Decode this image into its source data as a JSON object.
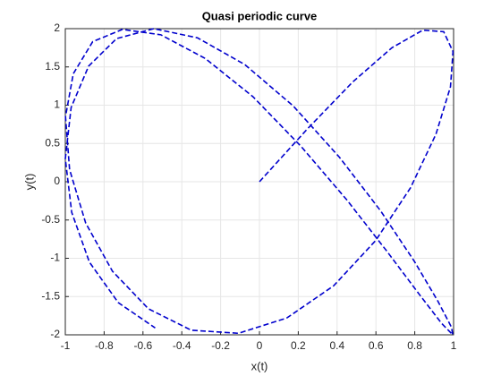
{
  "chart_data": {
    "type": "line",
    "title": "Quasi periodic curve",
    "x_label": "x(t)",
    "y_label": "y(t)",
    "x": [
      0,
      0.247,
      0.479,
      0.682,
      0.841,
      0.949,
      0.997,
      0.984,
      0.909,
      0.778,
      0.598,
      0.382,
      0.141,
      -0.108,
      -0.351,
      -0.572,
      -0.757,
      -0.895,
      -0.978,
      -0.999,
      -0.959,
      -0.859,
      -0.706,
      -0.508,
      -0.279,
      -0.033,
      0.215,
      0.451,
      0.657,
      0.823,
      0.938,
      0.996,
      0.989,
      0.919,
      0.798,
      0.624,
      0.412,
      0.174,
      -0.075,
      -0.319,
      -0.544,
      -0.736,
      -0.88,
      -0.97,
      -1.0,
      -0.967,
      -0.876,
      -0.727,
      -0.537
    ],
    "series": [
      {
        "color": "#0000cd",
        "line_style": "dashed",
        "values": [
          0,
          0.69,
          1.3,
          1.75,
          1.98,
          1.96,
          1.7,
          1.24,
          0.62,
          -0.08,
          -0.77,
          -1.36,
          -1.78,
          -1.98,
          -1.94,
          -1.66,
          -1.17,
          -0.54,
          0.16,
          0.85,
          1.41,
          1.83,
          1.99,
          1.92,
          1.61,
          1.11,
          0.46,
          -0.24,
          -0.91,
          -1.47,
          -1.85,
          -2.0,
          -1.9,
          -1.56,
          -1.04,
          -0.38,
          0.32,
          0.99,
          1.53,
          1.88,
          2.0,
          1.87,
          1.51,
          0.97,
          0.3,
          -0.4,
          -1.05,
          -1.58,
          -1.91
        ]
      }
    ],
    "xlim": [
      -1,
      1
    ],
    "xticks": [
      -1,
      -0.8,
      -0.6,
      -0.4,
      -0.2,
      0,
      0.2,
      0.4,
      0.6,
      0.8,
      1
    ],
    "ylim": [
      -2,
      2
    ],
    "yticks": [
      -2,
      -1.5,
      -1,
      -0.5,
      0,
      0.5,
      1,
      1.5,
      2
    ],
    "grid": true
  }
}
